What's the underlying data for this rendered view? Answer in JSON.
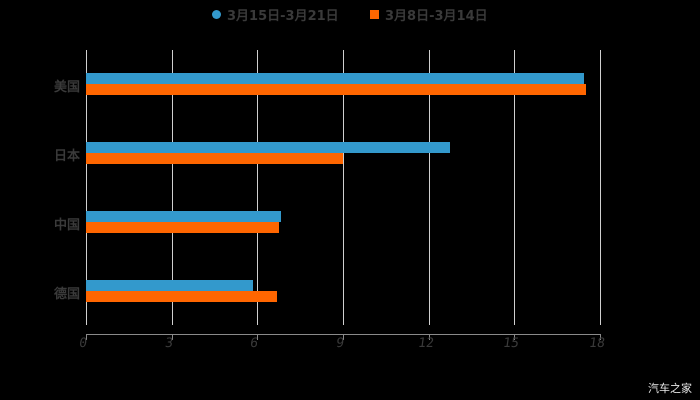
{
  "chart_data": {
    "type": "bar",
    "orientation": "horizontal",
    "title": "",
    "xlabel": "",
    "ylabel": "",
    "categories": [
      "美国",
      "日本",
      "中国",
      "德国"
    ],
    "series": [
      {
        "name": "3月15日-3月21日",
        "color": "#3399cc",
        "values": [
          17.45,
          12.75,
          6.83,
          5.85
        ]
      },
      {
        "name": "3月8日-3月14日",
        "color": "#ff6600",
        "values": [
          17.5,
          9.0,
          6.76,
          6.69
        ]
      }
    ],
    "xlim": [
      0,
      18
    ],
    "xticks": [
      "0",
      "3",
      "6",
      "9",
      "12",
      "15",
      "18"
    ],
    "grid": "vertical",
    "legend_position": "top"
  },
  "legend": [
    {
      "label": "3月15日-3月21日",
      "color": "#3399cc",
      "marker": "circle"
    },
    {
      "label": "3月8日-3月14日",
      "color": "#ff6600",
      "marker": "square"
    }
  ],
  "watermark": "汽车之家"
}
